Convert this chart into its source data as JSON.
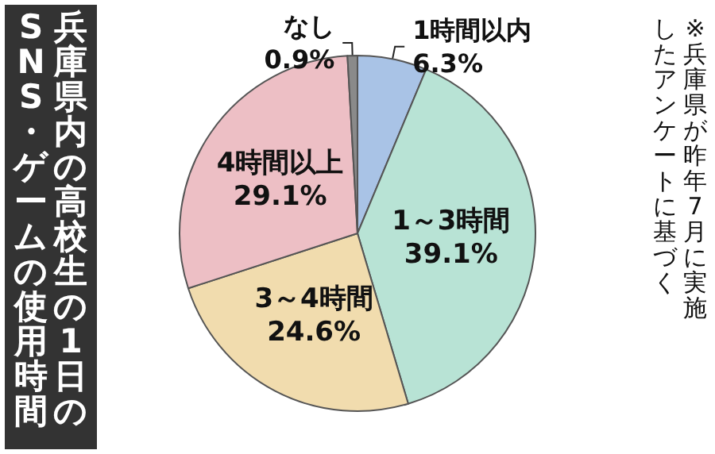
{
  "chart_data": {
    "type": "pie",
    "title": "兵庫県内の高校生の1日のSNS・ゲームの使用時間",
    "annotations": [
      "※兵庫県が昨年7月に実施したアンケートに基づく"
    ],
    "categories": [
      "1時間以内",
      "1～3時間",
      "3～4時間",
      "4時間以上",
      "なし"
    ],
    "values": [
      6.3,
      39.1,
      24.6,
      29.1,
      0.9
    ],
    "value_labels": [
      "6.3%",
      "39.1%",
      "24.6%",
      "29.1%",
      "0.9%"
    ],
    "colors": [
      "#a9c3e6",
      "#b8e3d5",
      "#f1dcae",
      "#edbfc5",
      "#8a8a8a"
    ]
  }
}
